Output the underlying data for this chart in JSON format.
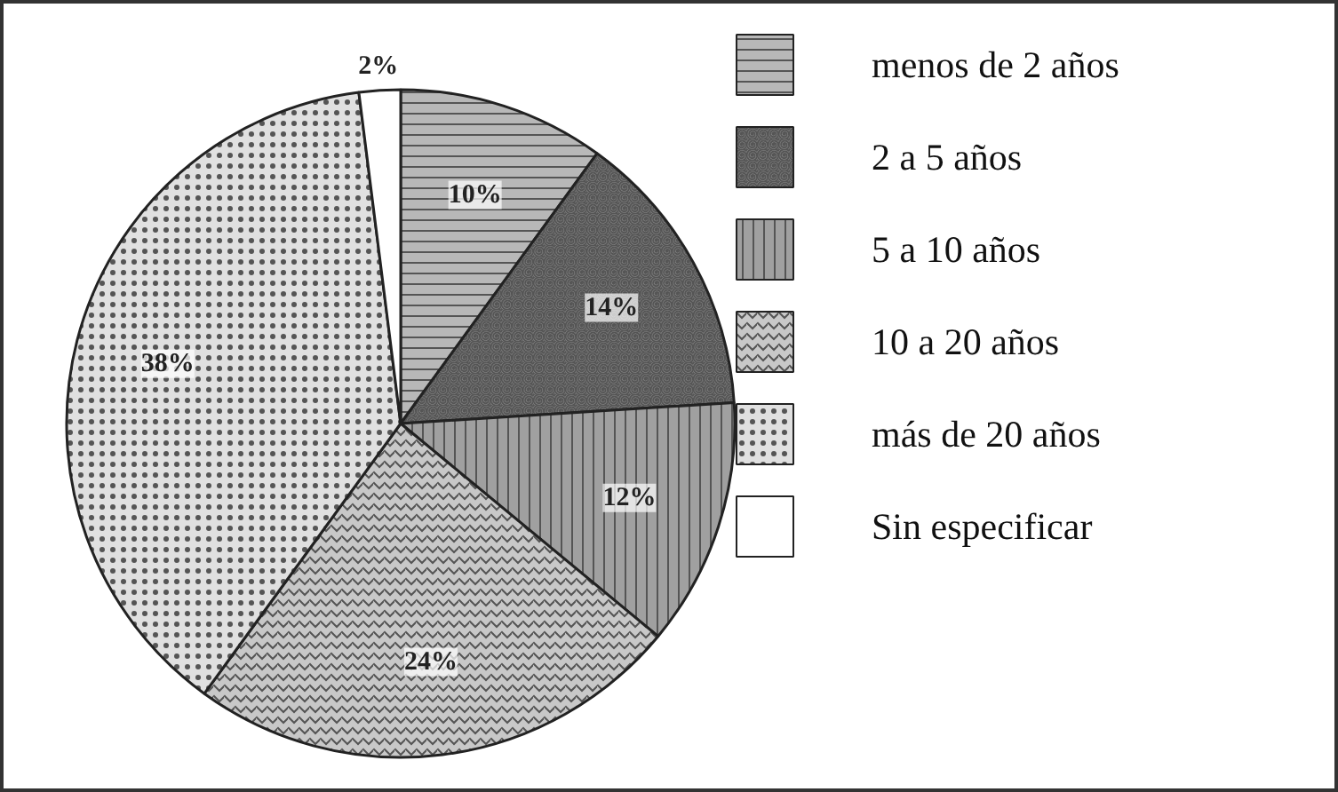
{
  "chart_data": {
    "type": "pie",
    "categories": [
      "menos de 2 años",
      "2 a 5 años",
      "5 a 10 años",
      "10 a 20 años",
      "más de 20 años",
      "Sin especificar"
    ],
    "values": [
      10,
      14,
      12,
      24,
      38,
      2
    ],
    "value_labels": [
      "10%",
      "14%",
      "12%",
      "24%",
      "38%",
      "2%"
    ],
    "colors": [
      "#b8b8b8",
      "#8c8c8c",
      "#a0a0a0",
      "#c8c8c8",
      "#e0e0e0",
      "#ffffff"
    ],
    "legend": "right"
  }
}
